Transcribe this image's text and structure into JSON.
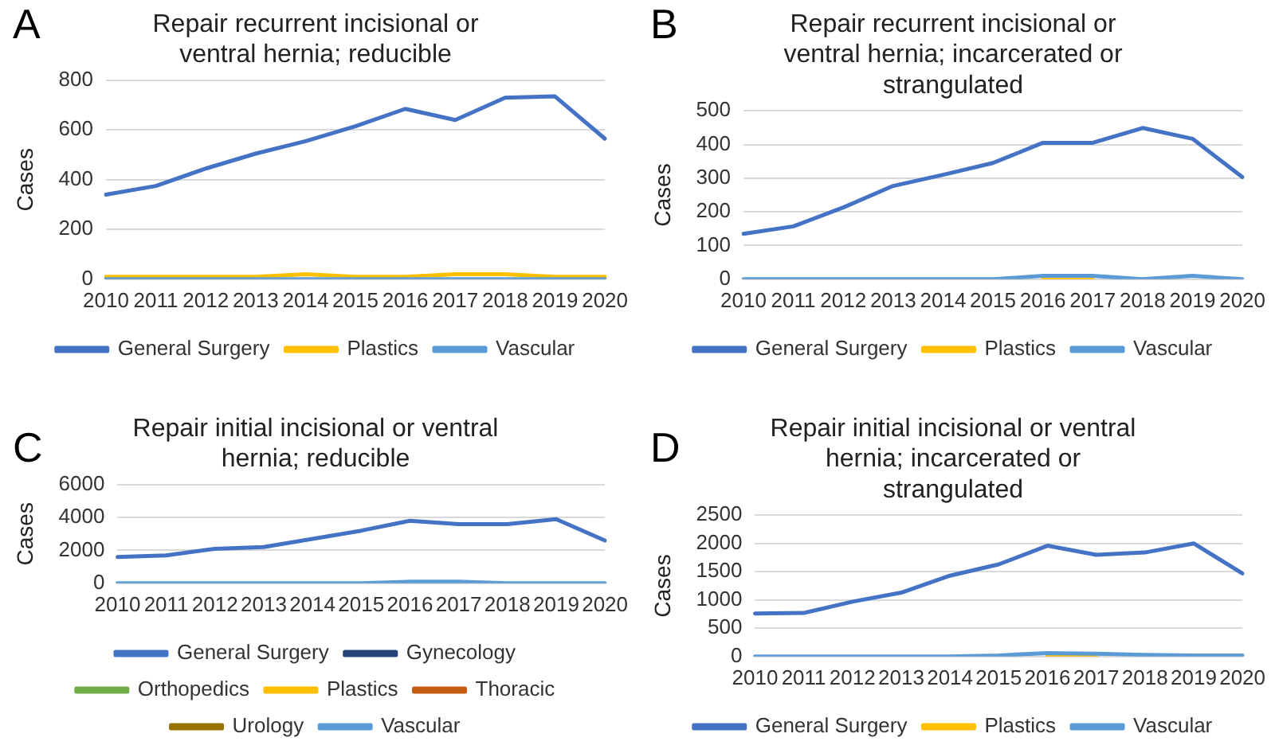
{
  "chart_data": [
    {
      "type": "line",
      "title": "Repair recurrent incisional or ventral hernia; reducible",
      "annotations": [
        "A"
      ],
      "ylabel": "Cases",
      "categories": [
        "2010",
        "2011",
        "2012",
        "2013",
        "2014",
        "2015",
        "2016",
        "2017",
        "2018",
        "2019",
        "2020"
      ],
      "ylim": [
        0,
        800
      ],
      "yticks": [
        0,
        200,
        400,
        600,
        800
      ],
      "grid": "y",
      "legend": "bottom",
      "marker": "none",
      "series": [
        {
          "name": "General Surgery",
          "color": "#4472c4",
          "values": [
            340,
            375,
            445,
            505,
            555,
            615,
            685,
            640,
            730,
            735,
            565
          ]
        },
        {
          "name": "Plastics",
          "color": "#ffc000",
          "values": [
            10,
            10,
            10,
            10,
            20,
            10,
            10,
            20,
            20,
            10,
            10
          ]
        },
        {
          "name": "Vascular",
          "color": "#5b9bd5",
          "values": [
            0,
            0,
            0,
            0,
            0,
            0,
            0,
            0,
            0,
            0,
            0
          ]
        }
      ]
    },
    {
      "type": "line",
      "title": "Repair recurrent incisional or ventral hernia; incarcerated or strangulated",
      "annotations": [
        "B"
      ],
      "ylabel": "Cases",
      "categories": [
        "2010",
        "2011",
        "2012",
        "2013",
        "2014",
        "2015",
        "2016",
        "2017",
        "2018",
        "2019",
        "2020"
      ],
      "ylim": [
        0,
        500
      ],
      "yticks": [
        0,
        100,
        200,
        300,
        400,
        500
      ],
      "grid": "y",
      "legend": "bottom",
      "marker": "none",
      "series": [
        {
          "name": "General Surgery",
          "color": "#4472c4",
          "values": [
            135,
            157,
            213,
            277,
            310,
            345,
            405,
            405,
            449,
            417,
            303
          ]
        },
        {
          "name": "Plastics",
          "color": "#ffc000",
          "values": [
            null,
            null,
            null,
            null,
            null,
            null,
            0,
            0,
            null,
            null,
            null
          ]
        },
        {
          "name": "Vascular",
          "color": "#5b9bd5",
          "values": [
            0,
            0,
            0,
            0,
            0,
            0,
            10,
            10,
            0,
            10,
            0
          ]
        }
      ]
    },
    {
      "type": "line",
      "title": "Repair initial incisional or ventral hernia; reducible",
      "annotations": [
        "C"
      ],
      "ylabel": "Cases",
      "categories": [
        "2010",
        "2011",
        "2012",
        "2013",
        "2014",
        "2015",
        "2016",
        "2017",
        "2018",
        "2019",
        "2020"
      ],
      "ylim": [
        0,
        6000
      ],
      "yticks": [
        0,
        2000,
        4000,
        6000
      ],
      "grid": "y",
      "legend": "bottom",
      "marker": "none",
      "series": [
        {
          "name": "General Surgery",
          "color": "#4472c4",
          "values": [
            1600,
            1700,
            2100,
            2200,
            2700,
            3200,
            3800,
            3600,
            3600,
            3900,
            2600
          ]
        },
        {
          "name": "Gynecology",
          "color": "#264478",
          "values": [
            null,
            null,
            null,
            null,
            null,
            null,
            null,
            null,
            null,
            null,
            null
          ]
        },
        {
          "name": "Orthopedics",
          "color": "#70ad47",
          "values": [
            null,
            null,
            null,
            null,
            null,
            null,
            null,
            null,
            null,
            null,
            null
          ]
        },
        {
          "name": "Plastics",
          "color": "#ffc000",
          "values": [
            null,
            null,
            null,
            null,
            null,
            null,
            null,
            null,
            null,
            null,
            null
          ]
        },
        {
          "name": "Thoracic",
          "color": "#c55a11",
          "values": [
            null,
            null,
            null,
            null,
            null,
            null,
            null,
            null,
            null,
            null,
            null
          ]
        },
        {
          "name": "Urology",
          "color": "#997300",
          "values": [
            null,
            null,
            null,
            null,
            null,
            null,
            null,
            null,
            null,
            null,
            null
          ]
        },
        {
          "name": "Vascular",
          "color": "#5b9bd5",
          "values": [
            0,
            0,
            0,
            0,
            0,
            0,
            100,
            100,
            0,
            0,
            0
          ]
        }
      ]
    },
    {
      "type": "line",
      "title": "Repair initial incisional or ventral hernia; incarcerated or strangulated",
      "annotations": [
        "D"
      ],
      "ylabel": "Cases",
      "categories": [
        "2010",
        "2011",
        "2012",
        "2013",
        "2014",
        "2015",
        "2016",
        "2017",
        "2018",
        "2019",
        "2020"
      ],
      "ylim": [
        0,
        2500
      ],
      "yticks": [
        0,
        500,
        1000,
        1500,
        2000,
        2500
      ],
      "grid": "y",
      "legend": "bottom",
      "marker": "none",
      "series": [
        {
          "name": "General Surgery",
          "color": "#4472c4",
          "values": [
            760,
            770,
            970,
            1130,
            1430,
            1630,
            1960,
            1800,
            1840,
            2000,
            1470
          ]
        },
        {
          "name": "Plastics",
          "color": "#ffc000",
          "values": [
            null,
            null,
            null,
            null,
            null,
            null,
            0,
            0,
            null,
            null,
            null
          ]
        },
        {
          "name": "Vascular",
          "color": "#5b9bd5",
          "values": [
            0,
            0,
            0,
            0,
            0,
            20,
            60,
            50,
            30,
            20,
            20
          ]
        }
      ]
    }
  ]
}
